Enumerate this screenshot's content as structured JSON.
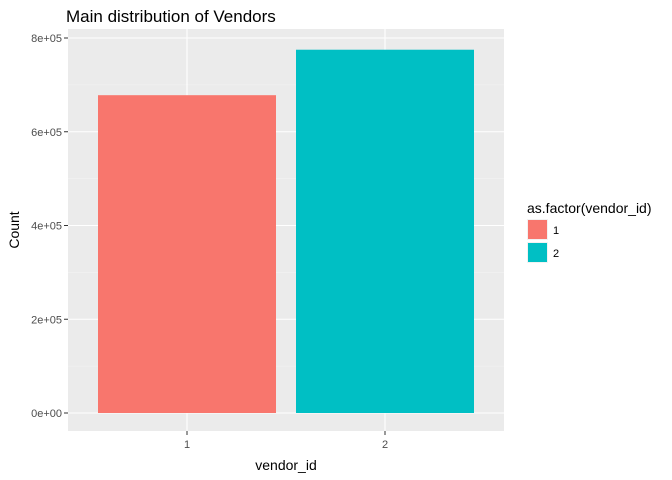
{
  "chart_data": {
    "type": "bar",
    "title": "Main distribution of Vendors",
    "xlabel": "vendor_id",
    "ylabel": "Count",
    "categories": [
      "1",
      "2"
    ],
    "values": [
      678000,
      775000
    ],
    "colors": [
      "#F8766D",
      "#00BFC4"
    ],
    "ylim": [
      0,
      800000
    ],
    "yticks": [
      0,
      200000,
      400000,
      600000,
      800000
    ],
    "ytick_labels": [
      "0e+00",
      "2e+05",
      "4e+05",
      "6e+05",
      "8e+05"
    ],
    "grid": true,
    "legend": {
      "title": "as.factor(vendor_id)",
      "position": "right",
      "entries": [
        {
          "label": "1",
          "color": "#F8766D"
        },
        {
          "label": "2",
          "color": "#00BFC4"
        }
      ]
    }
  }
}
